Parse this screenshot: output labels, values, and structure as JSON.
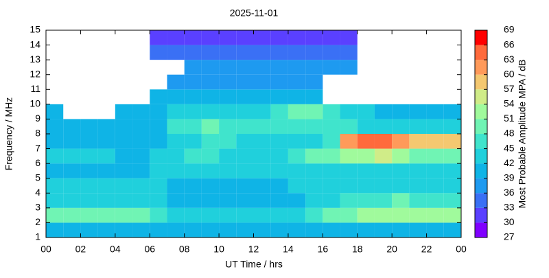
{
  "chart_data": {
    "type": "heatmap",
    "title": "2025-11-01",
    "x_label": "UT Time / hrs",
    "y_label": "Frequency / MHz",
    "xlim": [
      0,
      24
    ],
    "ylim": [
      1,
      15
    ],
    "xticks": [
      {
        "value": 0,
        "label": "00"
      },
      {
        "value": 2,
        "label": "02"
      },
      {
        "value": 4,
        "label": "04"
      },
      {
        "value": 6,
        "label": "06"
      },
      {
        "value": 8,
        "label": "08"
      },
      10,
      12,
      14,
      16,
      18,
      20,
      22,
      {
        "value": 24,
        "label": "00"
      }
    ],
    "yticks": [
      1,
      2,
      3,
      4,
      5,
      6,
      7,
      8,
      9,
      10,
      11,
      12,
      13,
      14,
      15
    ],
    "x_bins": [
      0,
      1,
      2,
      3,
      4,
      5,
      6,
      7,
      8,
      9,
      10,
      11,
      12,
      13,
      14,
      15,
      16,
      17,
      18,
      19,
      20,
      21,
      22,
      23,
      24
    ],
    "y_bins": [
      1,
      2,
      3,
      4,
      5,
      6,
      7,
      8,
      9,
      10,
      11,
      12,
      13,
      14,
      15
    ],
    "z": [
      [
        39,
        39,
        39,
        39,
        39,
        39,
        39,
        40,
        40,
        40,
        40,
        40,
        40,
        40,
        40,
        40,
        40,
        40,
        40,
        40,
        40,
        40,
        40,
        40
      ],
      [
        48,
        48,
        48,
        48,
        48,
        48,
        45,
        42,
        42,
        42,
        42,
        42,
        42,
        42,
        42,
        45,
        48,
        48,
        51,
        51,
        51,
        51,
        51,
        51
      ],
      [
        42,
        42,
        42,
        42,
        42,
        42,
        42,
        40,
        40,
        40,
        40,
        40,
        40,
        40,
        40,
        42,
        42,
        45,
        45,
        45,
        48,
        45,
        45,
        45
      ],
      [
        42,
        42,
        42,
        42,
        42,
        42,
        42,
        40,
        40,
        40,
        40,
        40,
        40,
        40,
        42,
        42,
        42,
        42,
        42,
        42,
        42,
        42,
        42,
        42
      ],
      [
        40,
        40,
        40,
        40,
        40,
        40,
        42,
        42,
        42,
        42,
        42,
        42,
        42,
        42,
        42,
        42,
        42,
        42,
        42,
        42,
        42,
        42,
        42,
        42
      ],
      [
        42,
        42,
        42,
        42,
        39,
        39,
        42,
        42,
        45,
        45,
        42,
        42,
        42,
        42,
        45,
        48,
        48,
        51,
        51,
        54,
        51,
        48,
        48,
        48
      ],
      [
        39,
        39,
        39,
        39,
        39,
        39,
        40,
        42,
        42,
        45,
        45,
        42,
        42,
        42,
        42,
        42,
        45,
        60,
        63,
        63,
        60,
        57,
        57,
        57
      ],
      [
        39,
        39,
        39,
        39,
        39,
        39,
        40,
        45,
        45,
        48,
        45,
        45,
        45,
        45,
        45,
        45,
        45,
        45,
        42,
        42,
        42,
        42,
        42,
        42
      ],
      [
        39,
        null,
        null,
        null,
        39,
        39,
        39,
        42,
        42,
        42,
        42,
        42,
        42,
        45,
        48,
        48,
        45,
        42,
        42,
        39,
        39,
        39,
        39,
        39
      ],
      [
        null,
        null,
        null,
        null,
        null,
        null,
        39,
        39,
        39,
        39,
        39,
        39,
        39,
        39,
        39,
        39,
        null,
        null,
        null,
        null,
        null,
        null,
        null,
        null
      ],
      [
        null,
        null,
        null,
        null,
        null,
        null,
        null,
        36,
        36,
        36,
        36,
        36,
        36,
        36,
        36,
        36,
        null,
        null,
        null,
        null,
        null,
        null,
        null,
        null
      ],
      [
        null,
        null,
        null,
        null,
        null,
        null,
        null,
        null,
        36,
        36,
        36,
        36,
        36,
        36,
        36,
        36,
        36,
        36,
        null,
        null,
        null,
        null,
        null,
        null
      ],
      [
        null,
        null,
        null,
        null,
        null,
        null,
        33,
        33,
        33,
        33,
        33,
        33,
        33,
        33,
        33,
        33,
        33,
        33,
        null,
        null,
        null,
        null,
        null,
        null
      ],
      [
        null,
        null,
        null,
        null,
        null,
        null,
        30,
        30,
        30,
        30,
        30,
        30,
        30,
        30,
        30,
        30,
        30,
        30,
        null,
        null,
        null,
        null,
        null,
        null
      ]
    ],
    "colorbar": {
      "label": "Most Probable Amplitude MPA / dB",
      "ticks": [
        27,
        30,
        33,
        36,
        39,
        42,
        45,
        48,
        51,
        54,
        57,
        60,
        63,
        66,
        69
      ],
      "colors": [
        "#8000ff",
        "#5a40ff",
        "#3a70f5",
        "#1e9af0",
        "#0fb4e6",
        "#20d0dc",
        "#40e4cc",
        "#70f4b4",
        "#a0fa9c",
        "#d0ec88",
        "#f4c870",
        "#ff9a5a",
        "#ff6a3c",
        "#ff0000"
      ]
    }
  }
}
